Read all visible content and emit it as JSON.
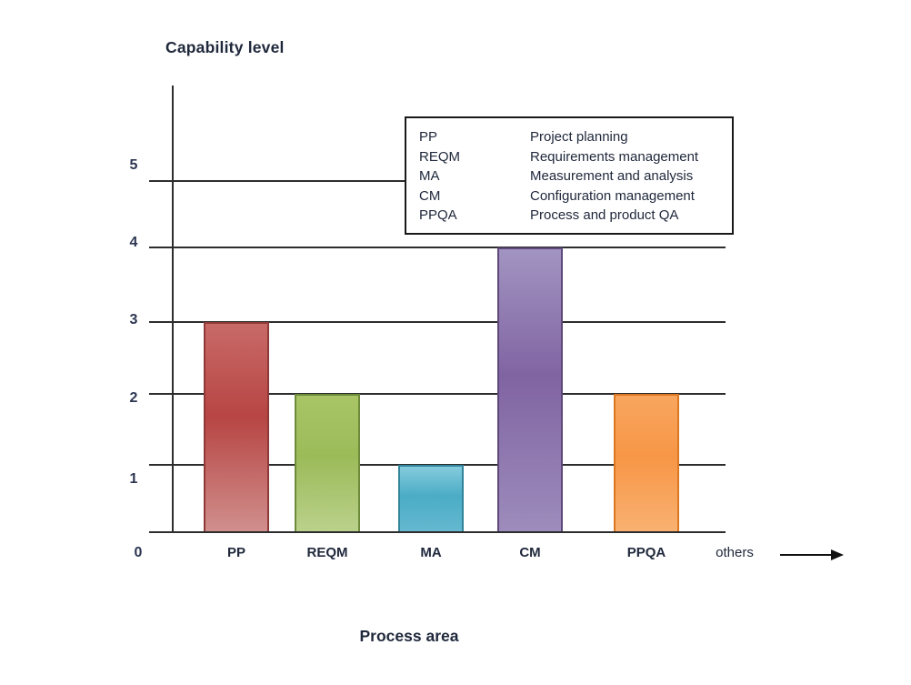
{
  "chart_data": {
    "type": "bar",
    "y_axis_title": "Capability level",
    "x_axis_title": "Process area",
    "ylim": [
      0,
      5
    ],
    "grid": true,
    "y_ticks": [
      "5",
      "4",
      "3",
      "2",
      "1"
    ],
    "origin_label": "0",
    "others_label": "others",
    "categories": [
      "PP",
      "REQM",
      "MA",
      "CM",
      "PPQA"
    ],
    "values": [
      3,
      2,
      1,
      4,
      2
    ],
    "bars": [
      {
        "category": "PP",
        "value": 3,
        "fill_top": "#C86A68",
        "fill_mid": "#B74543",
        "fill_bottom": "#D08F8D",
        "border": "#8E3937"
      },
      {
        "category": "REQM",
        "value": 2,
        "fill_top": "#A9C566",
        "fill_mid": "#9BBB59",
        "fill_bottom": "#BAD18B",
        "border": "#6C8A3A"
      },
      {
        "category": "MA",
        "value": 1,
        "fill_top": "#85CBDD",
        "fill_mid": "#4BACC6",
        "fill_bottom": "#64B8CF",
        "border": "#31859B"
      },
      {
        "category": "CM",
        "value": 4,
        "fill_top": "#A294C1",
        "fill_mid": "#8064A2",
        "fill_bottom": "#9D8CBC",
        "border": "#5F497A"
      },
      {
        "category": "PPQA",
        "value": 2,
        "fill_top": "#F8A65F",
        "fill_mid": "#F79646",
        "fill_bottom": "#F9B171",
        "border": "#DB7721"
      }
    ],
    "legend": {
      "position": "top-right",
      "entries": [
        {
          "abbr": "PP",
          "label": "Project planning"
        },
        {
          "abbr": "REQM",
          "label": "Requirements management"
        },
        {
          "abbr": "MA",
          "label": "Measurement and analysis"
        },
        {
          "abbr": "CM",
          "label": "Configuration management"
        },
        {
          "abbr": "PPQA",
          "label": "Process and product QA"
        }
      ]
    },
    "axis_color": "#2D2D2D",
    "text_color": "#20293C"
  }
}
